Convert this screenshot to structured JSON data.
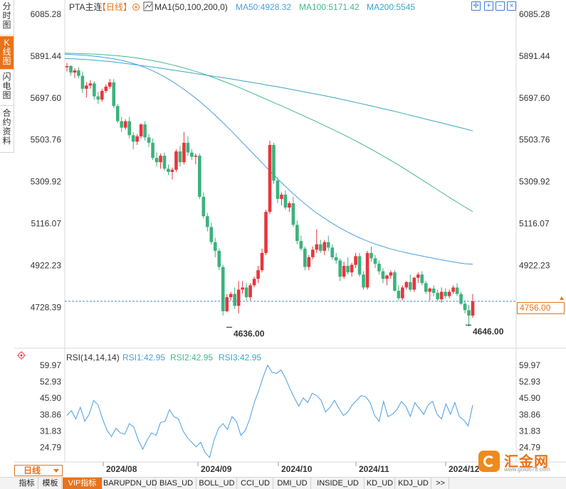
{
  "left_tabs": [
    {
      "label": "分时图",
      "chars": [
        "分",
        "时",
        "图"
      ],
      "active": false
    },
    {
      "label": "K线图",
      "chars": [
        "K",
        "线",
        "图"
      ],
      "active": true
    },
    {
      "label": "闪电图",
      "chars": [
        "闪",
        "电",
        "图"
      ],
      "active": false
    },
    {
      "label": "合约资料",
      "chars": [
        "合",
        "约",
        "资",
        "料"
      ],
      "active": false
    }
  ],
  "header": {
    "symbol": "PTA主连",
    "period_tag": "【日线】",
    "ma_title": "MA1(50,100,200,0)",
    "ma50": "MA50:4928.32",
    "ma100": "MA100:5171.42",
    "ma200": "MA200:5545"
  },
  "rsi_header": {
    "title": "RSI(14,14,14)",
    "rsi1": "RSI1:42.95",
    "rsi2": "RSI2:42.95",
    "rsi3": "RSI3:42.95"
  },
  "colors": {
    "up": "#e8353d",
    "down": "#3bb27d",
    "ma50": "#4a9ee0",
    "ma100": "#44b887",
    "ma200": "#3aa6c6",
    "rsi": "#4a9ee0",
    "accent": "#e8731a"
  },
  "tools": [
    "crosshair-icon",
    "zoom-in-icon",
    "zoom-out-icon",
    "close-icon"
  ],
  "chart_data": [
    {
      "type": "candlestick",
      "ylim": [
        4630,
        6090
      ],
      "y_ticks": [
        "6085.28",
        "5891.44",
        "5697.60",
        "5503.76",
        "5309.92",
        "5116.07",
        "4922.23",
        "4728.39"
      ],
      "x_labels": [
        "2024/08",
        "2024/09",
        "2024/10",
        "2024/11",
        "2024/12"
      ],
      "last_price": "4756.00",
      "annotations": [
        {
          "text": "4636.00",
          "value": 4636
        },
        {
          "text": "4646.00",
          "value": 4646
        }
      ],
      "ohlc": [
        [
          5840,
          5860,
          5820,
          5845
        ],
        [
          5845,
          5850,
          5800,
          5815
        ],
        [
          5815,
          5835,
          5790,
          5825
        ],
        [
          5825,
          5840,
          5790,
          5800
        ],
        [
          5800,
          5820,
          5720,
          5740
        ],
        [
          5740,
          5770,
          5700,
          5755
        ],
        [
          5755,
          5780,
          5740,
          5765
        ],
        [
          5765,
          5775,
          5690,
          5705
        ],
        [
          5705,
          5725,
          5670,
          5690
        ],
        [
          5690,
          5740,
          5680,
          5730
        ],
        [
          5730,
          5760,
          5720,
          5750
        ],
        [
          5750,
          5785,
          5740,
          5770
        ],
        [
          5770,
          5785,
          5650,
          5660
        ],
        [
          5660,
          5670,
          5580,
          5590
        ],
        [
          5590,
          5610,
          5540,
          5560
        ],
        [
          5560,
          5600,
          5550,
          5590
        ],
        [
          5590,
          5610,
          5510,
          5525
        ],
        [
          5525,
          5540,
          5460,
          5495
        ],
        [
          5495,
          5530,
          5480,
          5520
        ],
        [
          5520,
          5580,
          5510,
          5575
        ],
        [
          5575,
          5590,
          5500,
          5515
        ],
        [
          5515,
          5530,
          5470,
          5490
        ],
        [
          5490,
          5510,
          5410,
          5420
        ],
        [
          5420,
          5445,
          5380,
          5400
        ],
        [
          5400,
          5440,
          5370,
          5430
        ],
        [
          5430,
          5445,
          5360,
          5370
        ],
        [
          5370,
          5390,
          5340,
          5355
        ],
        [
          5355,
          5375,
          5320,
          5365
        ],
        [
          5365,
          5460,
          5355,
          5450
        ],
        [
          5450,
          5475,
          5380,
          5400
        ],
        [
          5400,
          5540,
          5390,
          5490
        ],
        [
          5490,
          5520,
          5430,
          5445
        ],
        [
          5445,
          5460,
          5410,
          5425
        ],
        [
          5425,
          5440,
          5390,
          5430
        ],
        [
          5430,
          5440,
          5230,
          5240
        ],
        [
          5240,
          5260,
          5140,
          5150
        ],
        [
          5150,
          5165,
          5080,
          5100
        ],
        [
          5100,
          5120,
          5020,
          5030
        ],
        [
          5030,
          5050,
          4960,
          4990
        ],
        [
          4990,
          5000,
          4900,
          4915
        ],
        [
          4915,
          4925,
          4690,
          4710
        ],
        [
          4710,
          4790,
          4705,
          4775
        ],
        [
          4775,
          4800,
          4760,
          4790
        ],
        [
          4790,
          4820,
          4720,
          4735
        ],
        [
          4735,
          4850,
          4700,
          4810
        ],
        [
          4810,
          4850,
          4790,
          4820
        ],
        [
          4820,
          4840,
          4760,
          4775
        ],
        [
          4775,
          4840,
          4760,
          4830
        ],
        [
          4830,
          4870,
          4820,
          4860
        ],
        [
          4860,
          4920,
          4840,
          4900
        ],
        [
          4900,
          5000,
          4890,
          4980
        ],
        [
          4980,
          5180,
          4970,
          5170
        ],
        [
          5170,
          5500,
          5160,
          5480
        ],
        [
          5480,
          5490,
          5300,
          5315
        ],
        [
          5315,
          5330,
          5210,
          5230
        ],
        [
          5230,
          5260,
          5200,
          5250
        ],
        [
          5250,
          5270,
          5180,
          5190
        ],
        [
          5190,
          5220,
          5170,
          5210
        ],
        [
          5210,
          5240,
          5100,
          5110
        ],
        [
          5110,
          5130,
          5020,
          5035
        ],
        [
          5035,
          5060,
          4990,
          5000
        ],
        [
          5000,
          5010,
          4900,
          4915
        ],
        [
          4915,
          4970,
          4900,
          4960
        ],
        [
          4960,
          5010,
          4950,
          4995
        ],
        [
          4995,
          5090,
          4980,
          5020
        ],
        [
          5020,
          5040,
          4980,
          4990
        ],
        [
          4990,
          5040,
          4970,
          5030
        ],
        [
          5030,
          5060,
          4990,
          5005
        ],
        [
          5005,
          5020,
          4950,
          4960
        ],
        [
          4960,
          4980,
          4930,
          4945
        ],
        [
          4945,
          4955,
          4850,
          4870
        ],
        [
          4870,
          4940,
          4860,
          4920
        ],
        [
          4920,
          4960,
          4880,
          4890
        ],
        [
          4890,
          4935,
          4870,
          4925
        ],
        [
          4925,
          4980,
          4910,
          4965
        ],
        [
          4965,
          4980,
          4870,
          4880
        ],
        [
          4880,
          4895,
          4810,
          4820
        ],
        [
          4820,
          4990,
          4810,
          4980
        ],
        [
          4980,
          5010,
          4940,
          4955
        ],
        [
          4955,
          4970,
          4910,
          4930
        ],
        [
          4930,
          4945,
          4880,
          4895
        ],
        [
          4895,
          4910,
          4840,
          4860
        ],
        [
          4860,
          4880,
          4830,
          4875
        ],
        [
          4875,
          4900,
          4860,
          4890
        ],
        [
          4890,
          4900,
          4800,
          4805
        ],
        [
          4805,
          4830,
          4760,
          4770
        ],
        [
          4770,
          4830,
          4760,
          4820
        ],
        [
          4820,
          4850,
          4810,
          4845
        ],
        [
          4845,
          4880,
          4800,
          4810
        ],
        [
          4810,
          4870,
          4800,
          4865
        ],
        [
          4865,
          4890,
          4840,
          4880
        ],
        [
          4880,
          4895,
          4830,
          4840
        ],
        [
          4840,
          4850,
          4790,
          4800
        ],
        [
          4800,
          4820,
          4760,
          4815
        ],
        [
          4815,
          4830,
          4780,
          4795
        ],
        [
          4795,
          4810,
          4755,
          4765
        ],
        [
          4765,
          4820,
          4750,
          4800
        ],
        [
          4800,
          4815,
          4770,
          4780
        ],
        [
          4780,
          4810,
          4770,
          4800
        ],
        [
          4800,
          4830,
          4790,
          4820
        ],
        [
          4820,
          4840,
          4780,
          4790
        ],
        [
          4790,
          4800,
          4740,
          4745
        ],
        [
          4745,
          4760,
          4700,
          4715
        ],
        [
          4715,
          4740,
          4640,
          4690
        ],
        [
          4690,
          4790,
          4680,
          4756
        ]
      ],
      "ma50": [
        5900,
        5898,
        5896,
        5893,
        5889,
        5884,
        5878,
        5870,
        5860,
        5848,
        5833,
        5815,
        5795,
        5772,
        5746,
        5718,
        5688,
        5655,
        5620,
        5583,
        5545,
        5505,
        5465,
        5425,
        5385,
        5345,
        5307,
        5270,
        5235,
        5202,
        5172,
        5145,
        5120,
        5097,
        5076,
        5057,
        5040,
        5025,
        5012,
        5000,
        4990,
        4981,
        4973,
        4965,
        4957,
        4950,
        4943,
        4936,
        4930,
        4928
      ],
      "ma100": [
        5905,
        5904,
        5902,
        5900,
        5897,
        5893,
        5888,
        5882,
        5874,
        5865,
        5854,
        5842,
        5828,
        5813,
        5796,
        5778,
        5759,
        5739,
        5718,
        5697,
        5676,
        5655,
        5633,
        5611,
        5589,
        5566,
        5543,
        5519,
        5494,
        5468,
        5441,
        5413,
        5384,
        5354,
        5323,
        5292,
        5261,
        5230,
        5200,
        5171
      ],
      "ma200": [
        5880,
        5878,
        5875,
        5871,
        5866,
        5860,
        5853,
        5846,
        5839,
        5831,
        5823,
        5815,
        5807,
        5799,
        5791,
        5783,
        5774,
        5765,
        5756,
        5747,
        5737,
        5727,
        5717,
        5707,
        5696,
        5685,
        5673,
        5661,
        5649,
        5637,
        5624,
        5611,
        5598,
        5585,
        5572,
        5559,
        5545
      ]
    },
    {
      "type": "line",
      "title": "RSI(14,14,14)",
      "ylim": [
        20,
        62
      ],
      "y_ticks": [
        "59.97",
        "52.93",
        "45.90",
        "38.86",
        "31.83",
        "24.79"
      ],
      "rsi": [
        38.5,
        40.5,
        37,
        42,
        36,
        39,
        45,
        43,
        37,
        32,
        29.5,
        33,
        31,
        30.5,
        35,
        33.5,
        28,
        24,
        28,
        31,
        30,
        35.5,
        36,
        41,
        38,
        37,
        32,
        29,
        27,
        25,
        27,
        22.5,
        20.5,
        28,
        33,
        35,
        32.5,
        38,
        36,
        30,
        32,
        37,
        44,
        49,
        55,
        60,
        57,
        56.5,
        58,
        54.5,
        50,
        46,
        42.5,
        46,
        44,
        48,
        47,
        45,
        40,
        42,
        45,
        41.5,
        38.5,
        40,
        43,
        45,
        47,
        46.5,
        44,
        38.5,
        36,
        44.5,
        38,
        39,
        41,
        44.5,
        42.5,
        38,
        44,
        41.5,
        39,
        43,
        44.5,
        39,
        37,
        43.5,
        39,
        44,
        38,
        36.5,
        34,
        42.95
      ],
      "xlabel": "",
      "ylabel": ""
    }
  ],
  "period_button": "日线",
  "bottom_tabs": [
    "指标",
    "模板",
    "VIP指标",
    "BARUPDN_UD",
    "BIAS_UD",
    "BOLL_UD",
    "CCI_UD",
    "DMI_UD",
    "INSIDE_UD",
    "KD_UD",
    "KDJ_UD",
    ">>"
  ],
  "watermark": {
    "name": "汇金网",
    "site": "www.gold678.com"
  }
}
